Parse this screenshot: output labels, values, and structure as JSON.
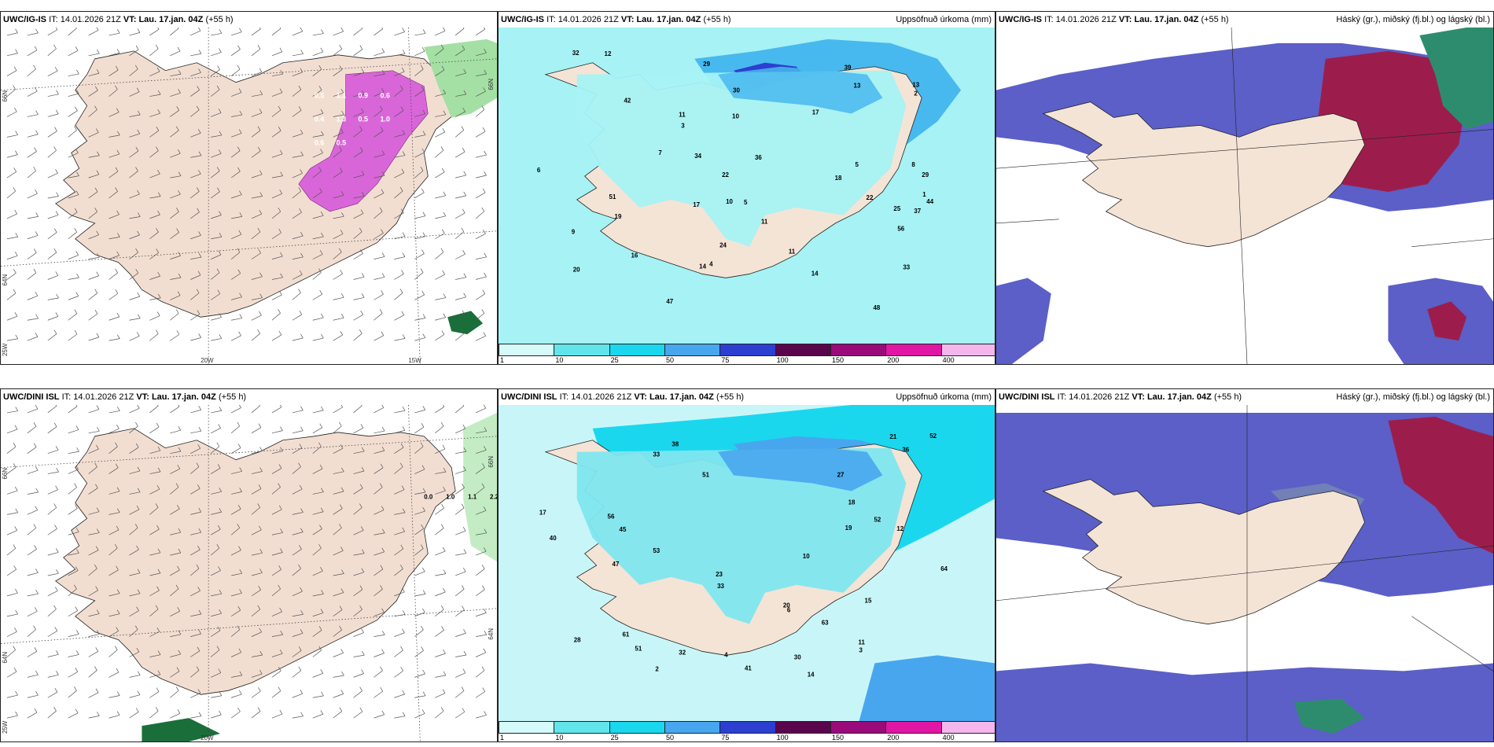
{
  "legend_colors": [
    "#d5fafa",
    "#61e5ea",
    "#1ad7ee",
    "#48a6ee",
    "#2c3fd0",
    "#5a064d",
    "#9a0a7a",
    "#e016a4",
    "#f5b6ee"
  ],
  "legend_ticks": [
    "1",
    "10",
    "25",
    "50",
    "75",
    "100",
    "150",
    "200",
    "400"
  ],
  "axis_labels": {
    "lon20": "20W",
    "lon15": "15W",
    "lon25": "25W",
    "lat66": "66N",
    "lat64": "64N",
    "lat66r": "66N",
    "lat64r": "64N"
  },
  "panels": [
    {
      "model": "UWC/IG-IS",
      "it_label": "IT:",
      "it_value": "14.01.2026 21Z",
      "vt_label": "VT:",
      "vt_value": "Lau. 17.jan. 04Z",
      "lead": "(+55 h)",
      "right_title": "",
      "wind_labels": [
        "0.5",
        "1.1",
        "0.9",
        "0.6",
        "0.4",
        "1.3",
        "0.5",
        "1.0",
        "0.6",
        "0.5"
      ],
      "num_labels": []
    },
    {
      "model": "UWC/IG-IS",
      "it_label": "IT:",
      "it_value": "14.01.2026 21Z",
      "vt_label": "VT:",
      "vt_value": "Lau. 17.jan. 04Z",
      "lead": "(+55 h)",
      "right_title": "Uppsöfnuð úrkoma (mm)",
      "wind_labels": [],
      "num_labels": [
        "36",
        "29",
        "17",
        "11",
        "34",
        "33",
        "42",
        "51",
        "32",
        "39",
        "17",
        "10",
        "24",
        "20",
        "16",
        "18",
        "37",
        "48",
        "56",
        "47",
        "22",
        "19",
        "13",
        "11",
        "9",
        "5",
        "14",
        "2",
        "1",
        "3",
        "8",
        "7",
        "5",
        "4",
        "6",
        "44",
        "25",
        "29",
        "12",
        "30",
        "22",
        "13",
        "14",
        "10",
        "11"
      ]
    },
    {
      "model": "UWC/IG-IS",
      "it_label": "IT:",
      "it_value": "14.01.2026 21Z",
      "vt_label": "VT:",
      "vt_value": "Lau. 17.jan. 04Z",
      "lead": "(+55 h)",
      "right_title": "Háský (gr.), miðský (fj.bl.) og lágský (bl.)",
      "wind_labels": [],
      "num_labels": []
    },
    {
      "model": "UWC/DINI ISL",
      "it_label": "IT:",
      "it_value": "14.01.2026 21Z",
      "vt_label": "VT:",
      "vt_value": "Lau. 17.jan. 04Z",
      "lead": "(+55 h)",
      "right_title": "",
      "wind_labels": [
        "0.0",
        "1.0",
        "1.1",
        "2.2"
      ],
      "num_labels": []
    },
    {
      "model": "UWC/DINI ISL",
      "it_label": "IT:",
      "it_value": "14.01.2026 21Z",
      "vt_label": "VT:",
      "vt_value": "Lau. 17.jan. 04Z",
      "lead": "(+55 h)",
      "right_title": "Uppsöfnuð úrkoma (mm)",
      "wind_labels": [],
      "num_labels": [
        "14",
        "33",
        "61",
        "56",
        "52",
        "30",
        "64",
        "53",
        "33",
        "51",
        "28",
        "17",
        "23",
        "20",
        "19",
        "21",
        "40",
        "36",
        "15",
        "12",
        "11",
        "6",
        "2",
        "3",
        "10",
        "18",
        "47",
        "45",
        "41",
        "51",
        "63",
        "52",
        "27",
        "32",
        "38",
        "4"
      ]
    },
    {
      "model": "UWC/DINI ISL",
      "it_label": "IT:",
      "it_value": "14.01.2026 21Z",
      "vt_label": "VT:",
      "vt_value": "Lau. 17.jan. 04Z",
      "lead": "(+55 h)",
      "right_title": "Háský (gr.), miðský (fj.bl.) og lágský (bl.)",
      "wind_labels": [],
      "num_labels": []
    }
  ]
}
